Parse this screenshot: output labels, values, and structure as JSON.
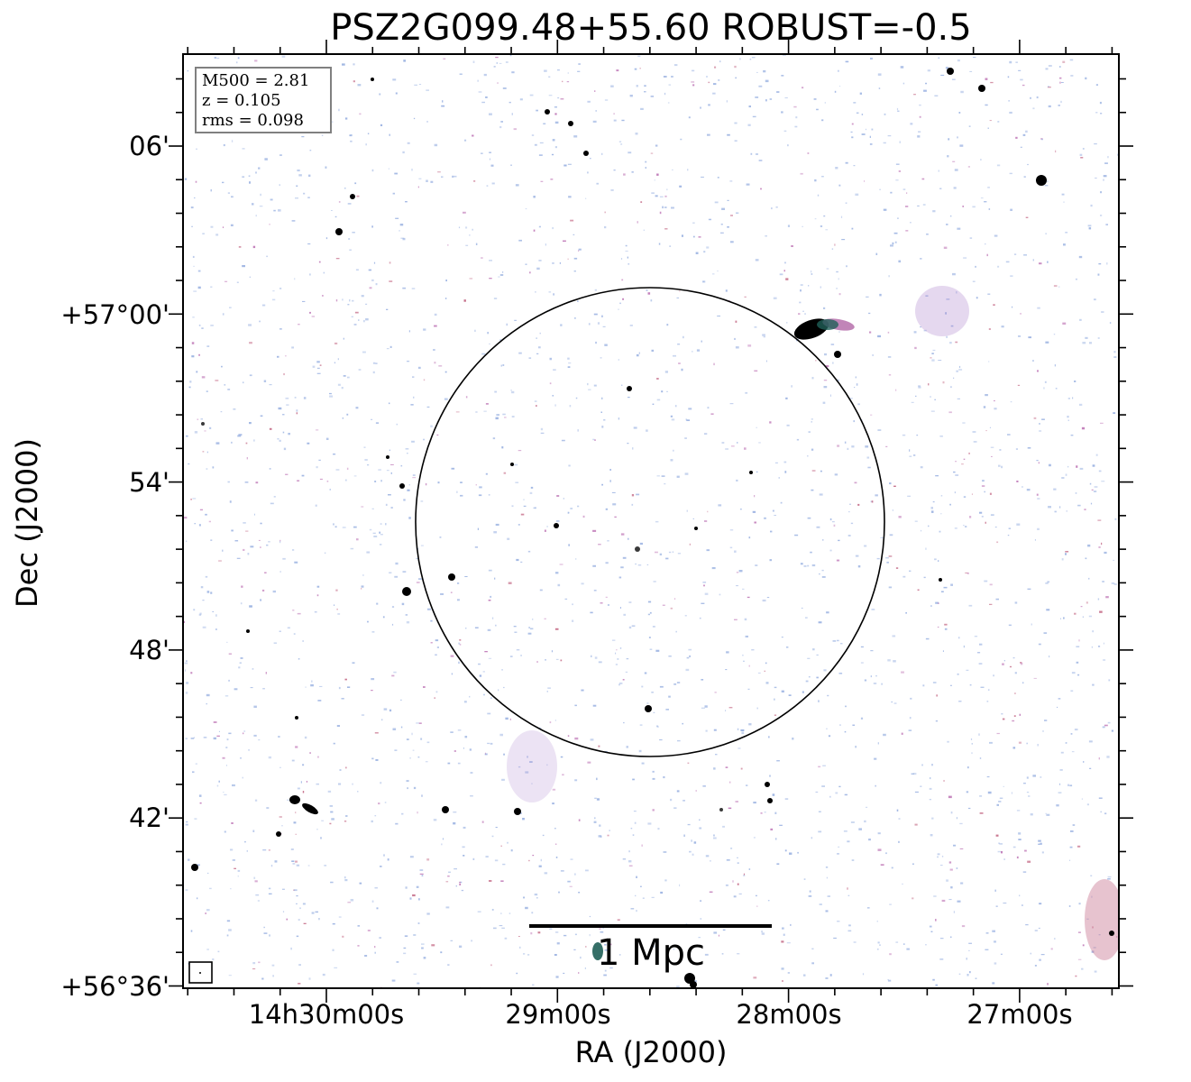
{
  "title": "PSZ2G099.48+55.60 ROBUST=-0.5",
  "axes": {
    "xlabel": "RA (J2000)",
    "ylabel": "Dec (J2000)",
    "xticks": [
      "14h30m00s",
      "29m00s",
      "28m00s",
      "27m00s"
    ],
    "yticks": [
      "06'",
      "+57°00'",
      "54'",
      "48'",
      "42'",
      "+56°36'"
    ]
  },
  "info_box": {
    "line1": "M500 = 2.81",
    "line2": "z = 0.105",
    "line3": "rms = 0.098"
  },
  "scale_bar": {
    "label": "1 Mpc"
  },
  "colors": {
    "noise_blue": "#9db4e2",
    "noise_magenta": "#c07ab8",
    "noise_rose": "#c46a86",
    "source": "#000000",
    "circle": "#000000"
  }
}
